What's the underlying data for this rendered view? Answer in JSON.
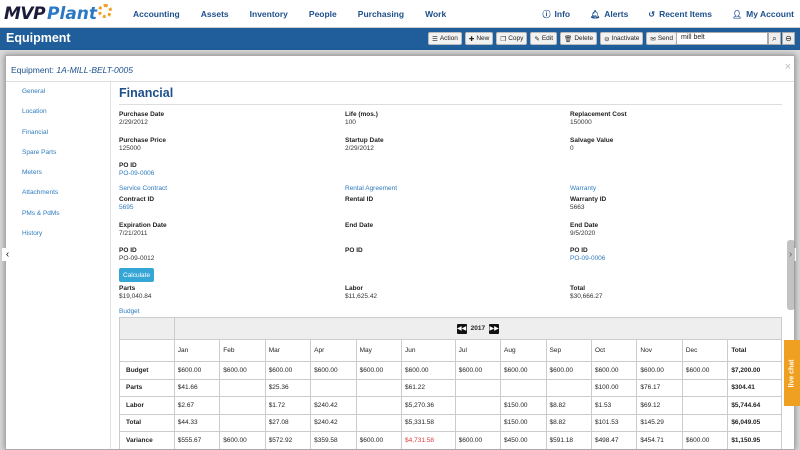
{
  "logo": {
    "text_a": "MVP",
    "text_b": "Plant"
  },
  "nav": {
    "items": [
      "Accounting",
      "Assets",
      "Inventory",
      "People",
      "Purchasing",
      "Work"
    ]
  },
  "right_nav": [
    {
      "label": "Info",
      "icon": "info-icon"
    },
    {
      "label": "Alerts",
      "icon": "bell-icon"
    },
    {
      "label": "Recent Items",
      "icon": "history-icon"
    },
    {
      "label": "My Account",
      "icon": "user-icon"
    }
  ],
  "toolbar": {
    "title": "Equipment",
    "buttons": [
      "Action",
      "New",
      "Copy",
      "Edit",
      "Delete",
      "Inactivate",
      "Send"
    ],
    "search_value": "mill belt"
  },
  "modal": {
    "label": "Equipment:",
    "record_id": "1A-MILL-BELT-0005",
    "close": "×"
  },
  "sidebar": {
    "items": [
      "General",
      "Location",
      "Financial",
      "Spare Parts",
      "Meters",
      "Attachments",
      "PMs & PdMs",
      "History"
    ]
  },
  "financial": {
    "title": "Financial",
    "purchase_date": {
      "label": "Purchase Date",
      "value": "2/29/2012"
    },
    "life": {
      "label": "Life (mos.)",
      "value": "100"
    },
    "replacement_cost": {
      "label": "Replacement Cost",
      "value": "150000"
    },
    "purchase_price": {
      "label": "Purchase Price",
      "value": "125000"
    },
    "startup_date": {
      "label": "Startup Date",
      "value": "2/29/2012"
    },
    "salvage_value": {
      "label": "Salvage Value",
      "value": "0"
    },
    "po_id": {
      "label": "PO ID",
      "value": "PO-09-0006"
    },
    "service_contract": {
      "title": "Service Contract",
      "contract_label": "Contract ID",
      "contract_value": "5695",
      "exp_label": "Expiration Date",
      "exp_value": "7/21/2011",
      "po_label": "PO ID",
      "po_value": "PO-09-0012"
    },
    "rental_agreement": {
      "title": "Rental Agreement",
      "rental_label": "Rental ID",
      "end_label": "End Date",
      "po_label": "PO ID"
    },
    "warranty": {
      "title": "Warranty",
      "warranty_label": "Warranty ID",
      "warranty_value": "5663",
      "end_label": "End Date",
      "end_value": "9/5/2020",
      "po_label": "PO ID",
      "po_value": "PO-09-0006"
    },
    "calculate": "Calculate",
    "parts": {
      "label": "Parts",
      "value": "$19,040.84"
    },
    "labor": {
      "label": "Labor",
      "value": "$11,625.42"
    },
    "total": {
      "label": "Total",
      "value": "$30,666.27"
    },
    "budget_label": "Budget"
  },
  "budget": {
    "year": "2017",
    "months": [
      "Jan",
      "Feb",
      "Mar",
      "Apr",
      "May",
      "Jun",
      "Jul",
      "Aug",
      "Sep",
      "Oct",
      "Nov",
      "Dec"
    ],
    "total_label": "Total",
    "rows": [
      {
        "name": "Budget",
        "cells": [
          "$600.00",
          "$600.00",
          "$600.00",
          "$600.00",
          "$600.00",
          "$600.00",
          "$600.00",
          "$600.00",
          "$600.00",
          "$600.00",
          "$600.00",
          "$600.00"
        ],
        "total": "$7,200.00"
      },
      {
        "name": "Parts",
        "cells": [
          "$41.66",
          "",
          "$25.36",
          "",
          "",
          "$61.22",
          "",
          "",
          "",
          "$100.00",
          "$76.17",
          ""
        ],
        "total": "$304.41"
      },
      {
        "name": "Labor",
        "cells": [
          "$2.67",
          "",
          "$1.72",
          "$240.42",
          "",
          "$5,270.36",
          "",
          "$150.00",
          "$8.82",
          "$1.53",
          "$69.12",
          ""
        ],
        "total": "$5,744.64"
      },
      {
        "name": "Total",
        "cells": [
          "$44.33",
          "",
          "$27.08",
          "$240.42",
          "",
          "$5,331.58",
          "",
          "$150.00",
          "$8.82",
          "$101.53",
          "$145.29",
          ""
        ],
        "total": "$6,049.05"
      },
      {
        "name": "Variance",
        "cells": [
          "$555.67",
          "$600.00",
          "$572.92",
          "$359.58",
          "$600.00",
          "$4,731.58",
          "$600.00",
          "$450.00",
          "$591.18",
          "$498.47",
          "$454.71",
          "$600.00"
        ],
        "total": "$1,150.95"
      }
    ],
    "negative_color": "#e03a3a"
  },
  "live_chat": "live chat",
  "colors": {
    "nav_blue": "#1d4f8c",
    "toolbar_blue": "#1f5e9a",
    "link_blue": "#2f7bbd",
    "accent_orange": "#f0a020"
  }
}
